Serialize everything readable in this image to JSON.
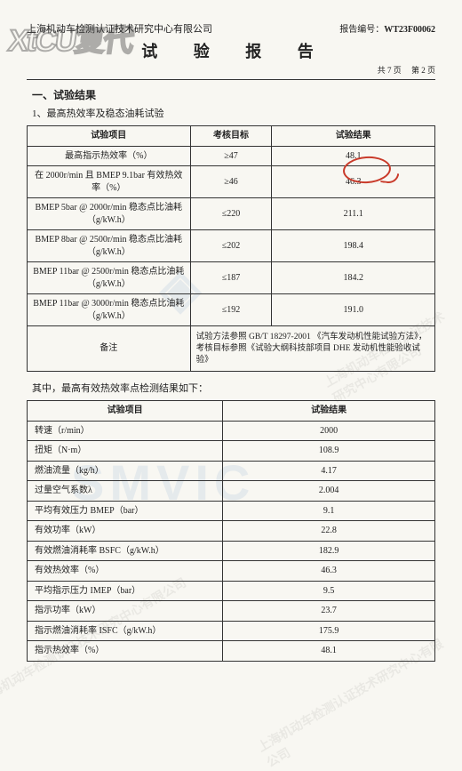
{
  "header": {
    "company": "上海机动车检测认证技术研究中心有限公司",
    "title": "试 验 报 告",
    "report_no_label": "报告编号：",
    "report_no": "WT23F00062",
    "total_pages_label": "共",
    "total_pages": "7",
    "page_unit": "页",
    "page_label": "第",
    "page_num": "2"
  },
  "section": {
    "heading": "一、试验结果",
    "subheading": "1、最高热效率及稳态油耗试验"
  },
  "table1": {
    "headers": {
      "item": "试验项目",
      "target": "考核目标",
      "result": "试验结果"
    },
    "rows": [
      {
        "item": "最高指示热效率（%）",
        "target": "≥47",
        "result": "48.1"
      },
      {
        "item": "在 2000r/min 且 BMEP 9.1bar 有效热效率（%）",
        "target": "≥46",
        "result": "46.3"
      },
      {
        "item": "BMEP 5bar @ 2000r/min 稳态点比油耗（g/kW.h）",
        "target": "≤220",
        "result": "211.1"
      },
      {
        "item": "BMEP 8bar @ 2500r/min 稳态点比油耗（g/kW.h）",
        "target": "≤202",
        "result": "198.4"
      },
      {
        "item": "BMEP 11bar @ 2500r/min 稳态点比油耗（g/kW.h）",
        "target": "≤187",
        "result": "184.2"
      },
      {
        "item": "BMEP 11bar @ 3000r/min 稳态点比油耗（g/kW.h）",
        "target": "≤192",
        "result": "191.0"
      }
    ],
    "note_label": "备注",
    "note_text": "试验方法参照 GB/T 18297-2001 《汽车发动机性能试验方法》，考核目标参照《试验大纲科技部项目 DHE 发动机性能验收试验》"
  },
  "mid_text": "其中，最高有效热效率点检测结果如下：",
  "table2": {
    "headers": {
      "item": "试验项目",
      "result": "试验结果"
    },
    "rows": [
      {
        "item": "转速（r/min）",
        "result": "2000"
      },
      {
        "item": "扭矩（N·m）",
        "result": "108.9"
      },
      {
        "item": "燃油流量（kg/h）",
        "result": "4.17"
      },
      {
        "item": "过量空气系数λ",
        "result": "2.004"
      },
      {
        "item": "平均有效压力 BMEP（bar）",
        "result": "9.1"
      },
      {
        "item": "有效功率（kW）",
        "result": "22.8"
      },
      {
        "item": "有效燃油消耗率 BSFC（g/kW.h）",
        "result": "182.9"
      },
      {
        "item": "有效热效率（%）",
        "result": "46.3"
      },
      {
        "item": "平均指示压力 IMEP（bar）",
        "result": "9.5"
      },
      {
        "item": "指示功率（kW）",
        "result": "23.7"
      },
      {
        "item": "指示燃油消耗率 ISFC（g/kW.h）",
        "result": "175.9"
      },
      {
        "item": "指示热效率（%）",
        "result": "48.1"
      }
    ]
  },
  "watermarks": {
    "logo": "XtCU复代",
    "smvic": "SMVIC",
    "diag": "上海机动车检测认证技术研究中心有限公司"
  },
  "style": {
    "bg": "#f8f7f2",
    "text": "#222",
    "border": "#333",
    "circle": "#c93a2a",
    "wm_blue": "rgba(100,140,200,0.12)"
  }
}
